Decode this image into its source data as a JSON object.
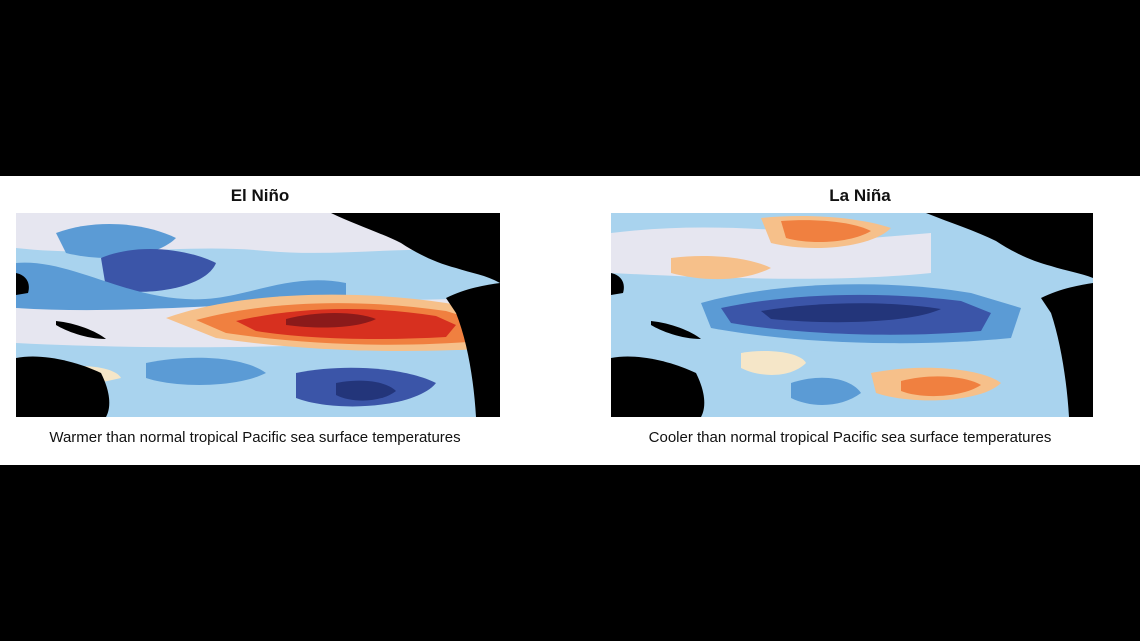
{
  "panels": [
    {
      "title": "El Niño",
      "caption": "Warmer than normal tropical Pacific sea surface temperatures"
    },
    {
      "title": "La Niña",
      "caption": "Cooler than normal tropical Pacific sea surface temperatures"
    }
  ],
  "palette": {
    "land": "#000000",
    "deep_red": "#8b1a1a",
    "red": "#d7301f",
    "orange": "#f08040",
    "light_orange": "#f6c08a",
    "pale": "#f5e6c8",
    "neutral": "#e6e6f0",
    "light_blue": "#a9d3ee",
    "blue": "#5b9bd5",
    "deep_blue": "#3b55a8",
    "navy": "#23357a"
  }
}
